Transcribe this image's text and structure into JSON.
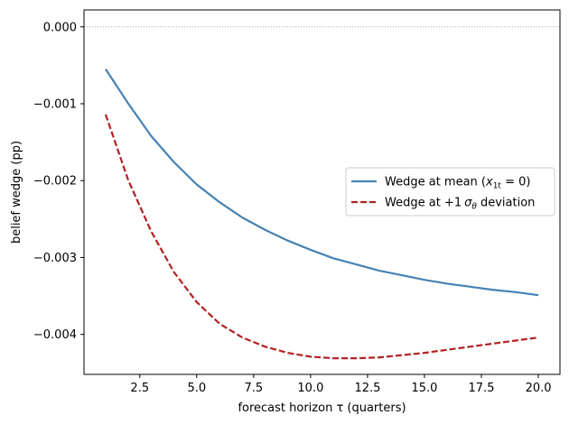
{
  "chart_data": {
    "type": "line",
    "xlabel": "forecast horizon τ (quarters)",
    "ylabel": "belief wedge (pp)",
    "xlim": [
      0.05,
      20.95
    ],
    "ylim": [
      -0.00452,
      0.00022
    ],
    "xticks": [
      2.5,
      5.0,
      7.5,
      10.0,
      12.5,
      15.0,
      17.5,
      20.0
    ],
    "xtick_labels": [
      "2.5",
      "5.0",
      "7.5",
      "10.0",
      "12.5",
      "15.0",
      "17.5",
      "20.0"
    ],
    "yticks": [
      0.0,
      -0.001,
      -0.002,
      -0.003,
      -0.004
    ],
    "ytick_labels": [
      "0.000",
      "−0.001",
      "−0.002",
      "−0.003",
      "−0.004"
    ],
    "reference_line": {
      "y": 0.0,
      "style": "dotted",
      "color": "#999999"
    },
    "grid": false,
    "legend_placement": "center-right",
    "x": [
      1,
      2,
      3,
      4,
      5,
      6,
      7,
      8,
      9,
      10,
      11,
      12,
      13,
      14,
      15,
      16,
      17,
      18,
      19,
      20
    ],
    "series": [
      {
        "name": "Wedge at mean (x1t = 0)",
        "legend_main": "Wedge at mean (",
        "legend_var": "x",
        "legend_sub": "1t",
        "legend_tail": " = 0)",
        "color": "#4682b4",
        "dash": "solid",
        "values": [
          -0.00055,
          -0.001,
          -0.00142,
          -0.00176,
          -0.00205,
          -0.00228,
          -0.00248,
          -0.00264,
          -0.00278,
          -0.0029,
          -0.00301,
          -0.00309,
          -0.00317,
          -0.00323,
          -0.00329,
          -0.00334,
          -0.00338,
          -0.00342,
          -0.00345,
          -0.00349
        ]
      },
      {
        "name": "Wedge at +1 σθ deviation",
        "legend_main": "Wedge at +1",
        "legend_var": "σ",
        "legend_sub": "θ",
        "legend_tail": " deviation",
        "color": "#b22222",
        "dash": "dashed",
        "values": [
          -0.00114,
          -0.002,
          -0.00266,
          -0.00319,
          -0.00358,
          -0.00386,
          -0.00404,
          -0.00416,
          -0.00424,
          -0.00429,
          -0.00431,
          -0.00431,
          -0.0043,
          -0.00427,
          -0.00424,
          -0.0042,
          -0.00416,
          -0.00412,
          -0.00408,
          -0.00404
        ]
      }
    ]
  }
}
